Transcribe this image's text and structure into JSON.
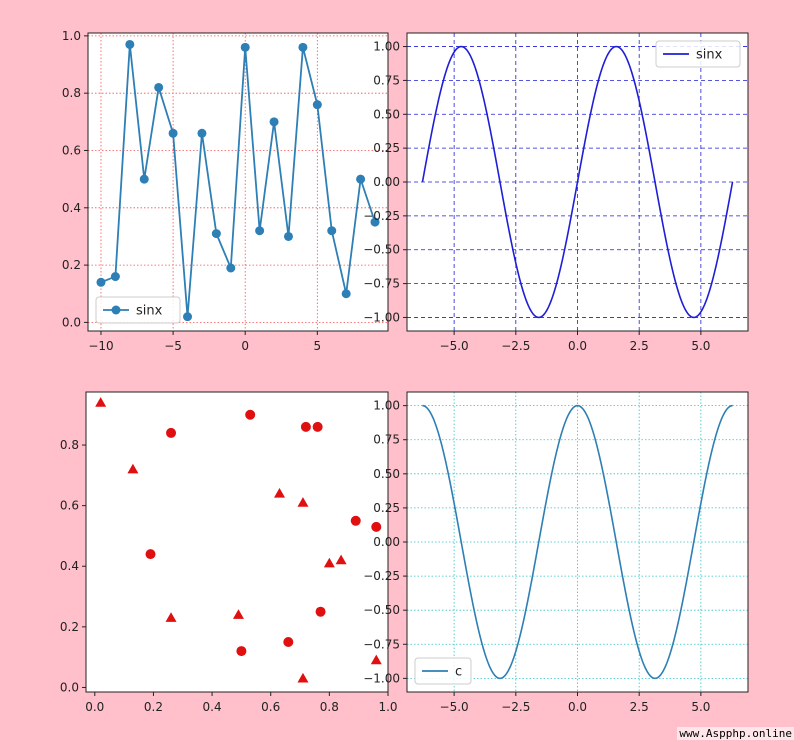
{
  "watermark": "www.Aspphp.online",
  "chart_data": [
    {
      "type": "line",
      "grid": true,
      "grid_style": "dotted",
      "grid_color": "#ff4d4d",
      "line_color": "#2e7fb5",
      "marker": "circle",
      "legend": {
        "label": "sinx",
        "placement": "lower-left"
      },
      "xlim": [
        -10.9,
        9.9
      ],
      "ylim": [
        -0.03,
        1.01
      ],
      "xticks": [
        -10,
        -5,
        0,
        5
      ],
      "xtick_labels": [
        "−10",
        "−5",
        "0",
        "5"
      ],
      "yticks": [
        0.0,
        0.2,
        0.4,
        0.6,
        0.8,
        1.0
      ],
      "ytick_labels": [
        "0.0",
        "0.2",
        "0.4",
        "0.6",
        "0.8",
        "1.0"
      ],
      "x": [
        -10,
        -9,
        -8,
        -7,
        -6,
        -5,
        -4,
        -3,
        -2,
        -1,
        0,
        1,
        2,
        3,
        4,
        5,
        6,
        7,
        8,
        9
      ],
      "values": [
        0.14,
        0.16,
        0.97,
        0.5,
        0.82,
        0.66,
        0.02,
        0.66,
        0.31,
        0.19,
        0.96,
        0.32,
        0.7,
        0.3,
        0.96,
        0.76,
        0.32,
        0.1,
        0.5,
        0.35
      ]
    },
    {
      "type": "line",
      "function": "sin",
      "grid": true,
      "grid_style": "dashed",
      "grid_color": "#1f1fd6",
      "line_color": "#1f1fd6",
      "legend": {
        "label": "sinx",
        "placement": "upper-right"
      },
      "x_range": [
        -6.2832,
        6.2832
      ],
      "xlim": [
        -6.91,
        6.91
      ],
      "ylim": [
        -1.1,
        1.1
      ],
      "xticks": [
        -5.0,
        -2.5,
        0.0,
        2.5,
        5.0
      ],
      "xtick_labels": [
        "−5.0",
        "−2.5",
        "0.0",
        "2.5",
        "5.0"
      ],
      "yticks": [
        1.0,
        0.75,
        0.5,
        0.25,
        0.0,
        -0.25,
        -0.5,
        -0.75,
        -1.0
      ],
      "ytick_labels": [
        "1.00",
        "0.75",
        "0.50",
        "0.25",
        "0.00",
        "−0.25",
        "−0.50",
        "−0.75",
        "−1.00"
      ]
    },
    {
      "type": "scatter",
      "grid": false,
      "marker_color": "#e01010",
      "xlim": [
        -0.03,
        1.0
      ],
      "ylim": [
        -0.015,
        0.975
      ],
      "xticks": [
        0.0,
        0.2,
        0.4,
        0.6,
        0.8,
        1.0
      ],
      "xtick_labels": [
        "0.0",
        "0.2",
        "0.4",
        "0.6",
        "0.8",
        "1.0"
      ],
      "yticks": [
        0.0,
        0.2,
        0.4,
        0.6,
        0.8
      ],
      "ytick_labels": [
        "0.0",
        "0.2",
        "0.4",
        "0.6",
        "0.8"
      ],
      "series": [
        {
          "marker": "circle",
          "x": [
            0.26,
            0.53,
            0.72,
            0.76,
            0.19,
            0.89,
            0.96,
            0.77,
            0.66,
            0.5
          ],
          "y": [
            0.84,
            0.9,
            0.86,
            0.86,
            0.44,
            0.55,
            0.53,
            0.25,
            0.15,
            0.12
          ]
        },
        {
          "marker": "triangle",
          "x": [
            0.02,
            0.13,
            0.63,
            0.71,
            0.84,
            0.8,
            0.26,
            0.49,
            0.71,
            0.96
          ],
          "y": [
            0.94,
            0.72,
            0.64,
            0.61,
            0.42,
            0.41,
            0.23,
            0.24,
            0.03,
            0.09
          ]
        }
      ]
    },
    {
      "type": "line",
      "function": "cos",
      "grid": true,
      "grid_style": "dotted",
      "grid_color": "#2ec4c4",
      "line_color": "#2e7fb5",
      "legend": {
        "label": "c",
        "placement": "lower-left"
      },
      "x_range": [
        -6.2832,
        6.2832
      ],
      "xlim": [
        -6.91,
        6.91
      ],
      "ylim": [
        -1.1,
        1.1
      ],
      "xticks": [
        -5.0,
        -2.5,
        0.0,
        2.5,
        5.0
      ],
      "xtick_labels": [
        "−5.0",
        "−2.5",
        "0.0",
        "2.5",
        "5.0"
      ],
      "yticks": [
        1.0,
        0.75,
        0.5,
        0.25,
        0.0,
        -0.25,
        -0.5,
        -0.75,
        -1.0
      ],
      "ytick_labels": [
        "1.00",
        "0.75",
        "0.50",
        "0.25",
        "0.00",
        "−0.25",
        "−0.50",
        "−0.75",
        "−1.00"
      ]
    }
  ]
}
